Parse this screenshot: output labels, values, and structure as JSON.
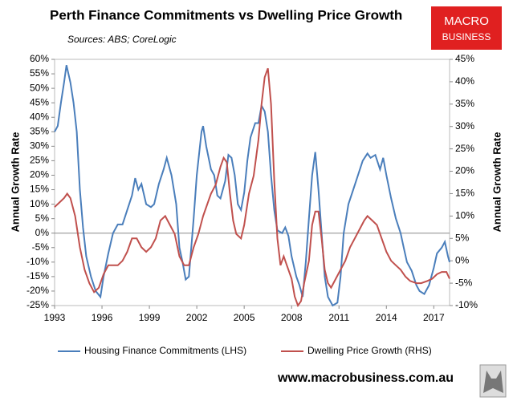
{
  "chart_data": {
    "type": "line",
    "title": "Perth Finance Commitments vs Dwelling Price Growth",
    "subtitle": "Sources: ABS; CoreLogic",
    "ylabel": "Annual Growth Rate",
    "y2label": "Annual Growth Rate",
    "xlim": [
      1993,
      2018
    ],
    "xticks": [
      1993,
      1996,
      1999,
      2002,
      2005,
      2008,
      2011,
      2014,
      2017
    ],
    "ylim": [
      -25,
      60
    ],
    "yticks": [
      {
        "value": -25,
        "label": "-25%"
      },
      {
        "value": -20,
        "label": "-20%"
      },
      {
        "value": -15,
        "label": "-15%"
      },
      {
        "value": -10,
        "label": "-10%"
      },
      {
        "value": -5,
        "label": "-5%"
      },
      {
        "value": 0,
        "label": "0%"
      },
      {
        "value": 5,
        "label": "5%"
      },
      {
        "value": 10,
        "label": "10%"
      },
      {
        "value": 15,
        "label": "15%"
      },
      {
        "value": 20,
        "label": "20%"
      },
      {
        "value": 25,
        "label": "25%"
      },
      {
        "value": 30,
        "label": "30%"
      },
      {
        "value": 35,
        "label": "35%"
      },
      {
        "value": 40,
        "label": "40%"
      },
      {
        "value": 45,
        "label": "45%"
      },
      {
        "value": 50,
        "label": "50%"
      },
      {
        "value": 55,
        "label": "55%"
      },
      {
        "value": 60,
        "label": "60%"
      }
    ],
    "y2lim": [
      -10,
      45
    ],
    "y2ticks": [
      {
        "value": -10,
        "label": "-10%"
      },
      {
        "value": -5,
        "label": "-5%"
      },
      {
        "value": 0,
        "label": "0%"
      },
      {
        "value": 5,
        "label": "5%"
      },
      {
        "value": 10,
        "label": "10%"
      },
      {
        "value": 15,
        "label": "15%"
      },
      {
        "value": 20,
        "label": "20%"
      },
      {
        "value": 25,
        "label": "25%"
      },
      {
        "value": 30,
        "label": "30%"
      },
      {
        "value": 35,
        "label": "35%"
      },
      {
        "value": 40,
        "label": "40%"
      },
      {
        "value": 45,
        "label": "45%"
      }
    ],
    "series": [
      {
        "name": "Housing Finance Commitments (LHS)",
        "color": "#4a7ebb",
        "x": [
          1993.0,
          1993.2,
          1993.4,
          1993.6,
          1993.75,
          1994.0,
          1994.2,
          1994.4,
          1994.6,
          1994.8,
          1995.0,
          1995.3,
          1995.6,
          1995.9,
          1996.1,
          1996.4,
          1996.7,
          1997.0,
          1997.3,
          1997.6,
          1997.9,
          1998.1,
          1998.3,
          1998.5,
          1998.8,
          1999.1,
          1999.3,
          1999.6,
          1999.9,
          2000.1,
          2000.4,
          2000.7,
          2000.9,
          2001.1,
          2001.3,
          2001.5,
          2001.8,
          2002.0,
          2002.3,
          2002.4,
          2002.6,
          2002.9,
          2003.1,
          2003.3,
          2003.5,
          2003.8,
          2004.0,
          2004.2,
          2004.4,
          2004.6,
          2004.8,
          2005.0,
          2005.2,
          2005.4,
          2005.7,
          2005.9,
          2006.1,
          2006.3,
          2006.5,
          2006.7,
          2006.9,
          2007.1,
          2007.4,
          2007.6,
          2007.8,
          2008.0,
          2008.3,
          2008.5,
          2008.7,
          2008.9,
          2009.1,
          2009.3,
          2009.5,
          2009.7,
          2009.9,
          2010.1,
          2010.3,
          2010.6,
          2010.9,
          2011.1,
          2011.3,
          2011.6,
          2011.9,
          2012.2,
          2012.5,
          2012.8,
          2013.0,
          2013.3,
          2013.6,
          2013.8,
          2014.0,
          2014.3,
          2014.6,
          2014.9,
          2015.1,
          2015.3,
          2015.6,
          2015.9,
          2016.1,
          2016.4,
          2016.7,
          2017.0,
          2017.2,
          2017.5,
          2017.7,
          2017.9,
          2018.0
        ],
        "values": [
          35,
          37,
          45,
          52,
          58,
          52,
          45,
          35,
          15,
          2,
          -8,
          -15,
          -20,
          -22,
          -15,
          -7,
          0,
          3,
          3,
          8,
          13,
          19,
          15,
          17,
          10,
          9,
          10,
          17,
          22,
          26,
          20,
          10,
          -5,
          -10,
          -16,
          -15,
          5,
          20,
          35,
          37,
          30,
          22,
          20,
          13,
          12,
          18,
          27,
          26,
          20,
          10,
          8,
          14,
          25,
          33,
          38,
          38,
          44,
          42,
          35,
          20,
          8,
          1,
          0,
          2,
          -1,
          -8,
          -15,
          -18,
          -22,
          -10,
          5,
          20,
          28,
          15,
          0,
          -15,
          -22,
          -25,
          -24,
          -15,
          0,
          10,
          15,
          20,
          25,
          27.5,
          26,
          27,
          22,
          26,
          20,
          12,
          5,
          0,
          -5,
          -10,
          -13,
          -18,
          -20,
          -21,
          -18,
          -12,
          -7,
          -5,
          -3,
          -8,
          -10
        ]
      },
      {
        "name": "Dwelling Price Growth (RHS)",
        "color": "#c0504d",
        "axis": "y2",
        "x": [
          1993.0,
          1993.3,
          1993.6,
          1993.8,
          1994.0,
          1994.3,
          1994.6,
          1994.9,
          1995.2,
          1995.5,
          1995.8,
          1996.1,
          1996.4,
          1996.7,
          1997.0,
          1997.3,
          1997.6,
          1997.9,
          1998.2,
          1998.5,
          1998.8,
          1999.1,
          1999.4,
          1999.7,
          2000.0,
          2000.3,
          2000.6,
          2000.9,
          2001.2,
          2001.5,
          2001.8,
          2002.1,
          2002.4,
          2002.7,
          2002.9,
          2003.2,
          2003.5,
          2003.7,
          2003.9,
          2004.1,
          2004.3,
          2004.5,
          2004.8,
          2005.0,
          2005.3,
          2005.6,
          2005.9,
          2006.1,
          2006.3,
          2006.5,
          2006.7,
          2006.9,
          2007.1,
          2007.3,
          2007.5,
          2007.7,
          2008.0,
          2008.2,
          2008.4,
          2008.6,
          2008.8,
          2009.1,
          2009.3,
          2009.5,
          2009.7,
          2009.9,
          2010.1,
          2010.3,
          2010.5,
          2010.8,
          2011.1,
          2011.4,
          2011.7,
          2012.0,
          2012.3,
          2012.6,
          2012.8,
          2013.1,
          2013.4,
          2013.7,
          2014.0,
          2014.3,
          2014.6,
          2014.9,
          2015.2,
          2015.5,
          2015.9,
          2016.2,
          2016.6,
          2016.9,
          2017.2,
          2017.5,
          2017.8,
          2018.0
        ],
        "values": [
          12,
          13,
          14,
          15,
          14,
          10,
          3,
          -2,
          -5,
          -7,
          -6,
          -3,
          -1,
          -1,
          -1,
          0,
          2,
          5,
          5,
          3,
          2,
          3,
          5,
          9,
          10,
          8,
          6,
          1,
          -1,
          -1,
          3,
          6,
          10,
          13,
          15,
          17,
          21,
          23,
          22,
          15,
          9,
          6,
          5,
          8,
          15,
          19,
          27,
          35,
          41,
          43,
          35,
          18,
          5,
          -1,
          1,
          -1,
          -4,
          -8,
          -10,
          -9,
          -5,
          0,
          8,
          11,
          11,
          5,
          -2,
          -5,
          -6,
          -4,
          -2,
          0,
          3,
          5,
          7,
          9,
          10,
          9,
          8,
          5,
          2,
          0,
          -1,
          -2,
          -3.5,
          -4.5,
          -5,
          -5,
          -4.5,
          -4,
          -3,
          -2.5,
          -2.5,
          -4
        ]
      }
    ]
  },
  "logo": {
    "line1": "MACRO",
    "line2": "BUSINESS"
  },
  "footer": "www.macrobusiness.com.au"
}
